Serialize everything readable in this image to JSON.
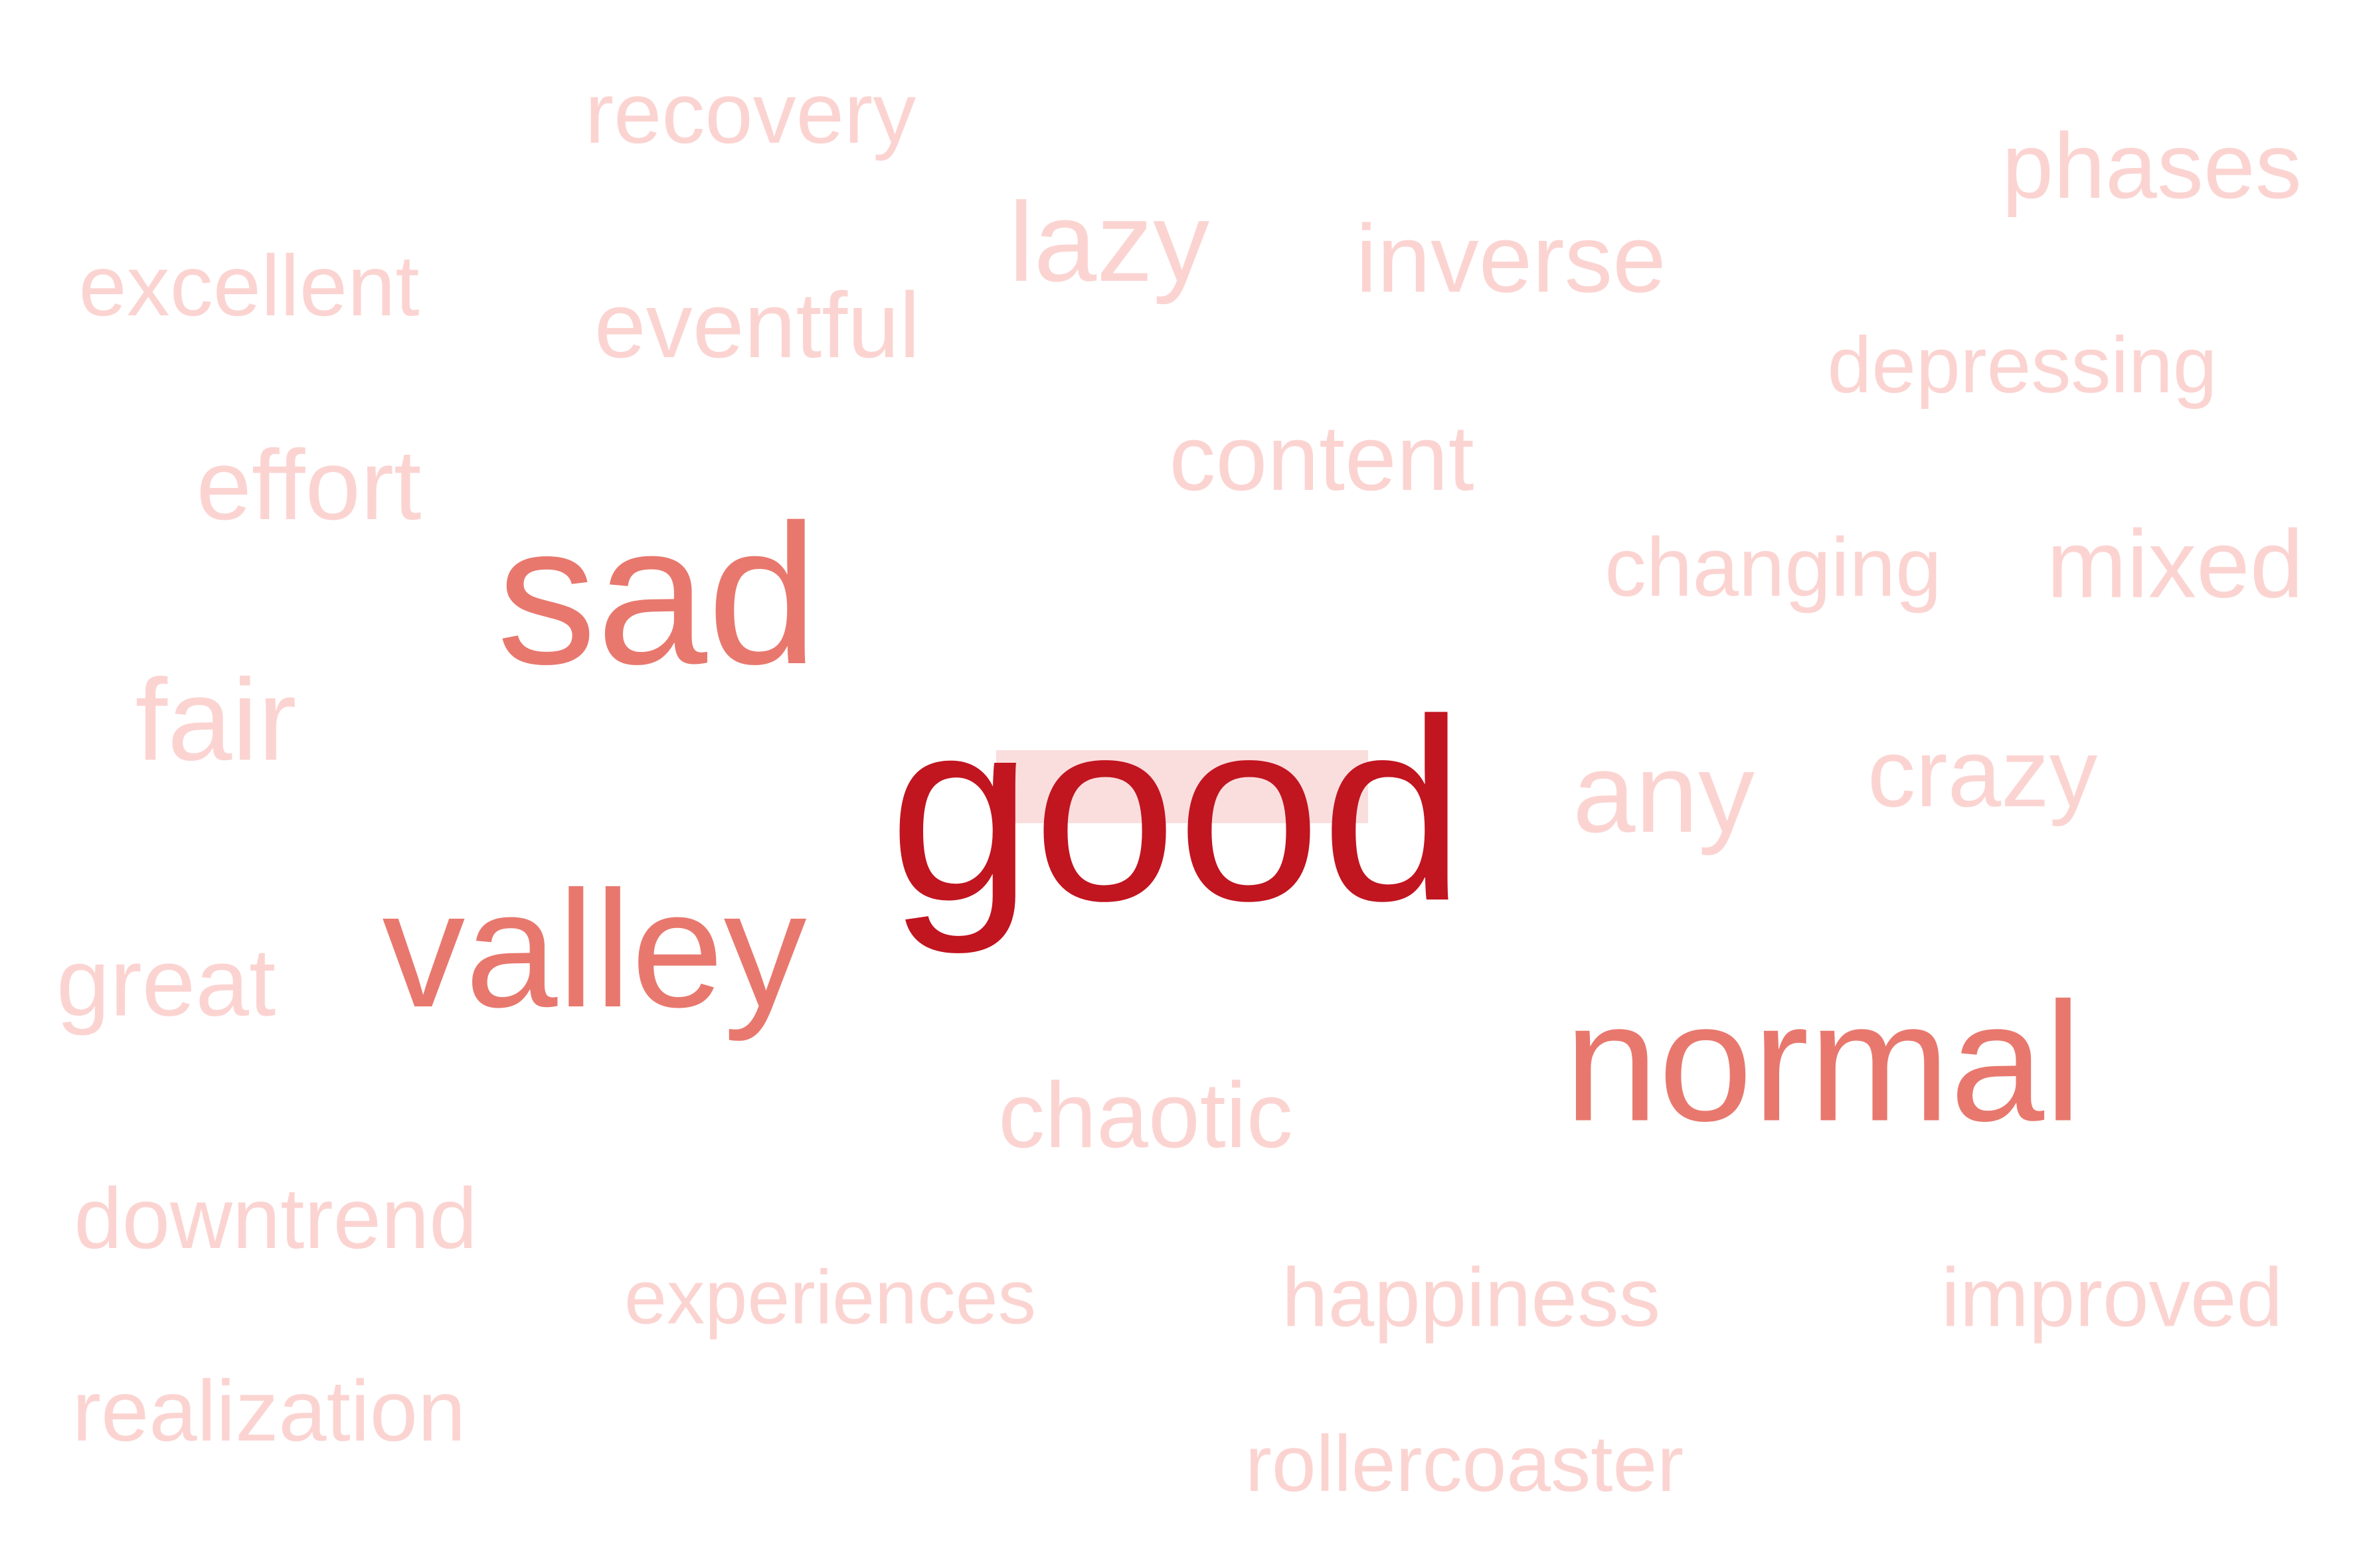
{
  "colors": {
    "strong": "#c11520",
    "medium": "#e8786e",
    "light": "#fbd4d1"
  },
  "words": [
    {
      "id": "good",
      "text": "good",
      "tier": 1
    },
    {
      "id": "sad",
      "text": "sad",
      "tier": 2
    },
    {
      "id": "valley",
      "text": "valley",
      "tier": 2
    },
    {
      "id": "normal",
      "text": "normal",
      "tier": 2
    },
    {
      "id": "recovery",
      "text": "recovery",
      "tier": 3
    },
    {
      "id": "phases",
      "text": "phases",
      "tier": 3
    },
    {
      "id": "excellent",
      "text": "excellent",
      "tier": 3
    },
    {
      "id": "lazy",
      "text": "lazy",
      "tier": 3
    },
    {
      "id": "inverse",
      "text": "inverse",
      "tier": 3
    },
    {
      "id": "eventful",
      "text": "eventful",
      "tier": 3
    },
    {
      "id": "depressing",
      "text": "depressing",
      "tier": 3
    },
    {
      "id": "content",
      "text": "content",
      "tier": 3
    },
    {
      "id": "effort",
      "text": "effort",
      "tier": 3
    },
    {
      "id": "changing",
      "text": "changing",
      "tier": 3
    },
    {
      "id": "mixed",
      "text": "mixed",
      "tier": 3
    },
    {
      "id": "fair",
      "text": "fair",
      "tier": 3
    },
    {
      "id": "any",
      "text": "any",
      "tier": 3
    },
    {
      "id": "crazy",
      "text": "crazy",
      "tier": 3
    },
    {
      "id": "great",
      "text": "great",
      "tier": 3
    },
    {
      "id": "chaotic",
      "text": "chaotic",
      "tier": 3
    },
    {
      "id": "downtrend",
      "text": "downtrend",
      "tier": 3
    },
    {
      "id": "experiences",
      "text": "experiences",
      "tier": 3
    },
    {
      "id": "happiness",
      "text": "happiness",
      "tier": 3
    },
    {
      "id": "improved",
      "text": "improved",
      "tier": 3
    },
    {
      "id": "realization",
      "text": "realization",
      "tier": 3
    },
    {
      "id": "rollercoaster",
      "text": "rollercoaster",
      "tier": 3
    }
  ]
}
